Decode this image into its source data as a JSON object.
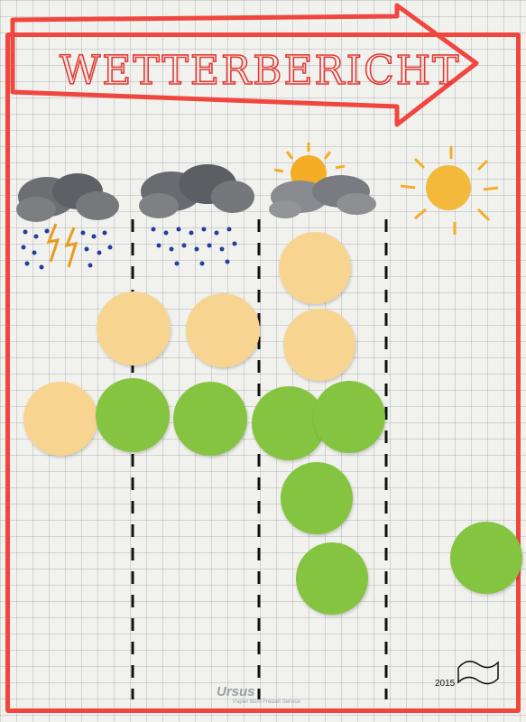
{
  "poster": {
    "title": "WETTERBERICHT",
    "year": "2015",
    "logo": "Ursus",
    "logo_tagline": "Papier Büro Freizeit Service"
  },
  "categories": [
    {
      "name": "thunderstorm-icon",
      "orange_dots": 2,
      "green_dots": 1
    },
    {
      "name": "rain-cloud-icon",
      "orange_dots": 1,
      "green_dots": 1
    },
    {
      "name": "partly-cloudy-icon",
      "orange_dots": 2,
      "green_dots": 4
    },
    {
      "name": "sun-icon",
      "orange_dots": 0,
      "green_dots": 1
    }
  ],
  "colors": {
    "border": "#f0463e",
    "orange_dot": "#f7d590",
    "green_dot": "#85c440",
    "divider": "#111111"
  }
}
